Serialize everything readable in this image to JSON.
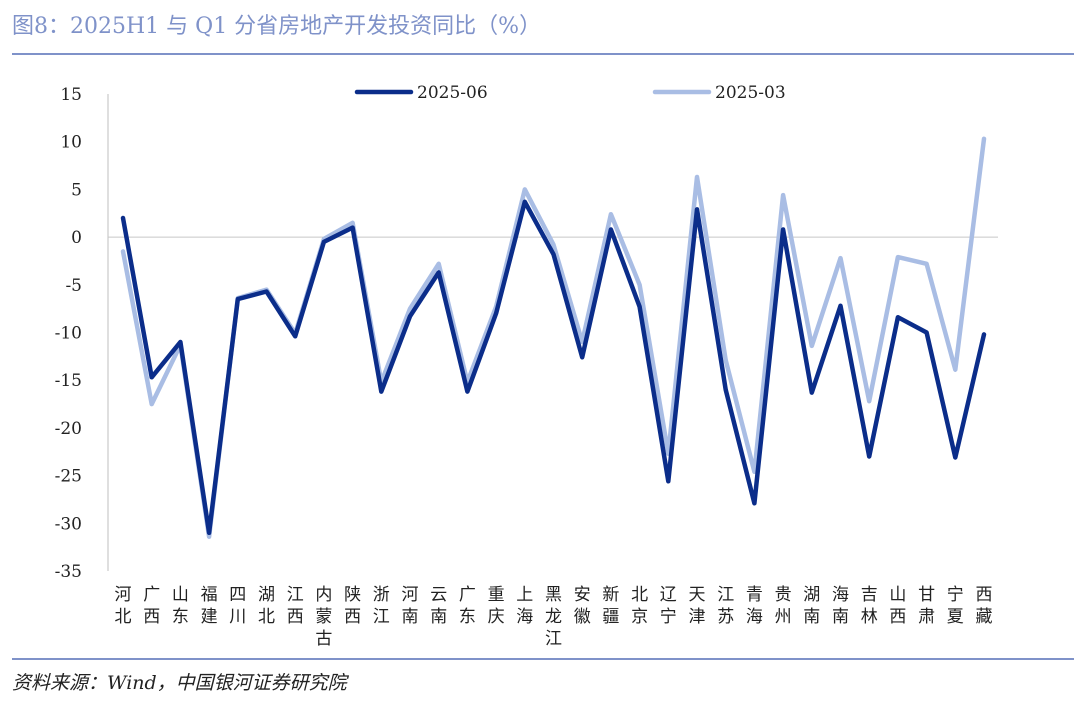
{
  "title": "图8：2025H1 与 Q1 分省房地产开发投资同比（%）",
  "source": "资料来源：Wind，中国银河证券研究院",
  "chart_data": {
    "type": "line",
    "categories": [
      [
        "河",
        "北"
      ],
      [
        "广",
        "西"
      ],
      [
        "山",
        "东"
      ],
      [
        "福",
        "建"
      ],
      [
        "四",
        "川"
      ],
      [
        "湖",
        "北"
      ],
      [
        "江",
        "西"
      ],
      [
        "内",
        "蒙",
        "古"
      ],
      [
        "陕",
        "西"
      ],
      [
        "浙",
        "江"
      ],
      [
        "河",
        "南"
      ],
      [
        "云",
        "南"
      ],
      [
        "广",
        "东"
      ],
      [
        "重",
        "庆"
      ],
      [
        "上",
        "海"
      ],
      [
        "黑",
        "龙",
        "江"
      ],
      [
        "安",
        "徽"
      ],
      [
        "新",
        "疆"
      ],
      [
        "北",
        "京"
      ],
      [
        "辽",
        "宁"
      ],
      [
        "天",
        "津"
      ],
      [
        "江",
        "苏"
      ],
      [
        "青",
        "海"
      ],
      [
        "贵",
        "州"
      ],
      [
        "湖",
        "南"
      ],
      [
        "海",
        "南"
      ],
      [
        "吉",
        "林"
      ],
      [
        "山",
        "西"
      ],
      [
        "甘",
        "肃"
      ],
      [
        "宁",
        "夏"
      ],
      [
        "西",
        "藏"
      ]
    ],
    "series": [
      {
        "name": "2025-06",
        "color": "#0b2d8a",
        "values": [
          2.0,
          -14.7,
          -11.0,
          -31.0,
          -6.5,
          -5.7,
          -10.4,
          -0.5,
          1.0,
          -16.2,
          -8.3,
          -3.7,
          -16.2,
          -8.0,
          3.7,
          -1.8,
          -12.6,
          0.8,
          -7.3,
          -25.6,
          2.9,
          -16.0,
          -27.9,
          0.8,
          -16.3,
          -7.2,
          -23.0,
          -8.4,
          -10.0,
          -23.1,
          -10.2
        ]
      },
      {
        "name": "2025-03",
        "color": "#a9bde4",
        "values": [
          -1.5,
          -17.5,
          -11.3,
          -31.4,
          -6.4,
          -5.5,
          -10.1,
          -0.2,
          1.5,
          -15.2,
          -7.5,
          -2.8,
          -15.2,
          -7.3,
          5.0,
          -0.8,
          -11.0,
          2.4,
          -5.0,
          -22.7,
          6.3,
          -12.9,
          -24.6,
          4.4,
          -11.4,
          -2.2,
          -17.2,
          -2.1,
          -2.8,
          -13.9,
          10.3
        ]
      }
    ],
    "yticks": [
      "15",
      "10",
      "5",
      "0",
      "-5",
      "-10",
      "-15",
      "-20",
      "-25",
      "-30",
      "-35"
    ],
    "ylim": [
      -35,
      15
    ],
    "legend": "top-center",
    "grid": false
  }
}
